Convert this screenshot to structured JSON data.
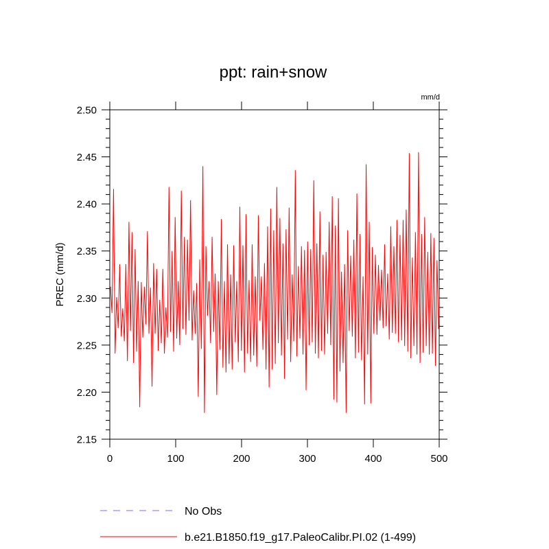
{
  "chart_data": {
    "type": "line",
    "title": "ppt: rain+snow",
    "units_label": "mm/d",
    "ylabel": "PREC  (mm/d)",
    "xlabel": "",
    "xlim": [
      0,
      500
    ],
    "ylim": [
      2.15,
      2.5
    ],
    "x_ticks": [
      0,
      100,
      200,
      300,
      400,
      500
    ],
    "x_tick_labels": [
      "0",
      "100",
      "200",
      "300",
      "400",
      "500"
    ],
    "y_ticks": [
      2.15,
      2.2,
      2.25,
      2.3,
      2.35,
      2.4,
      2.45,
      2.5
    ],
    "y_tick_labels": [
      "2.15",
      "2.20",
      "2.25",
      "2.30",
      "2.35",
      "2.40",
      "2.45",
      "2.50"
    ],
    "grid": false,
    "legend_position": "bottom",
    "series": [
      {
        "name": "No Obs",
        "color": "#7070ff",
        "style": "dashed",
        "values": []
      },
      {
        "name": "b.e21.B1850.f19_g17.PaleoCalibr.PI.02 (1-499)",
        "color": "#ff0000",
        "style": "solid",
        "x_start": 1,
        "x_end": 499,
        "values": [
          2.312,
          2.284,
          2.416,
          2.241,
          2.301,
          2.268,
          2.336,
          2.259,
          2.289,
          2.254,
          2.336,
          2.233,
          2.381,
          2.265,
          2.37,
          2.231,
          2.352,
          2.243,
          2.318,
          2.184,
          2.317,
          2.258,
          2.312,
          2.272,
          2.371,
          2.262,
          2.311,
          2.206,
          2.337,
          2.262,
          2.331,
          2.244,
          2.298,
          2.252,
          2.331,
          2.241,
          2.29,
          2.258,
          2.418,
          2.264,
          2.35,
          2.243,
          2.386,
          2.257,
          2.318,
          2.25,
          2.414,
          2.267,
          2.365,
          2.261,
          2.362,
          2.276,
          2.404,
          2.255,
          2.308,
          2.262,
          2.316,
          2.195,
          2.341,
          2.246,
          2.44,
          2.178,
          2.355,
          2.281,
          2.318,
          2.252,
          2.365,
          2.264,
          2.326,
          2.197,
          2.318,
          2.245,
          2.384,
          2.226,
          2.318,
          2.221,
          2.357,
          2.23,
          2.325,
          2.224,
          2.356,
          2.253,
          2.318,
          2.232,
          2.397,
          2.244,
          2.356,
          2.221,
          2.389,
          2.241,
          2.319,
          2.232,
          2.357,
          2.239,
          2.323,
          2.227,
          2.388,
          2.276,
          2.323,
          2.245,
          2.337,
          2.224,
          2.376,
          2.205,
          2.395,
          2.224,
          2.372,
          2.23,
          2.418,
          2.252,
          2.385,
          2.239,
          2.358,
          2.214,
          2.373,
          2.256,
          2.396,
          2.232,
          2.325,
          2.254,
          2.436,
          2.238,
          2.334,
          2.257,
          2.355,
          2.24,
          2.351,
          2.202,
          2.36,
          2.25,
          2.352,
          2.253,
          2.425,
          2.241,
          2.358,
          2.236,
          2.392,
          2.244,
          2.346,
          2.24,
          2.349,
          2.262,
          2.381,
          2.25,
          2.408,
          2.192,
          2.377,
          2.189,
          2.406,
          2.222,
          2.328,
          2.231,
          2.336,
          2.178,
          2.372,
          2.265,
          2.345,
          2.259,
          2.362,
          2.236,
          2.411,
          2.242,
          2.368,
          2.234,
          2.323,
          2.187,
          2.442,
          2.24,
          2.381,
          2.188,
          2.354,
          2.262,
          2.346,
          2.261,
          2.335,
          2.276,
          2.33,
          2.268,
          2.357,
          2.27,
          2.326,
          2.256,
          2.376,
          2.263,
          2.355,
          2.262,
          2.383,
          2.253,
          2.367,
          2.255,
          2.383,
          2.249,
          2.394,
          2.243,
          2.454,
          2.236,
          2.343,
          2.249,
          2.37,
          2.24,
          2.455,
          2.231,
          2.368,
          2.242,
          2.386,
          2.249,
          2.349,
          2.24,
          2.369,
          2.241,
          2.364,
          2.228,
          2.34,
          2.267
        ]
      }
    ]
  }
}
